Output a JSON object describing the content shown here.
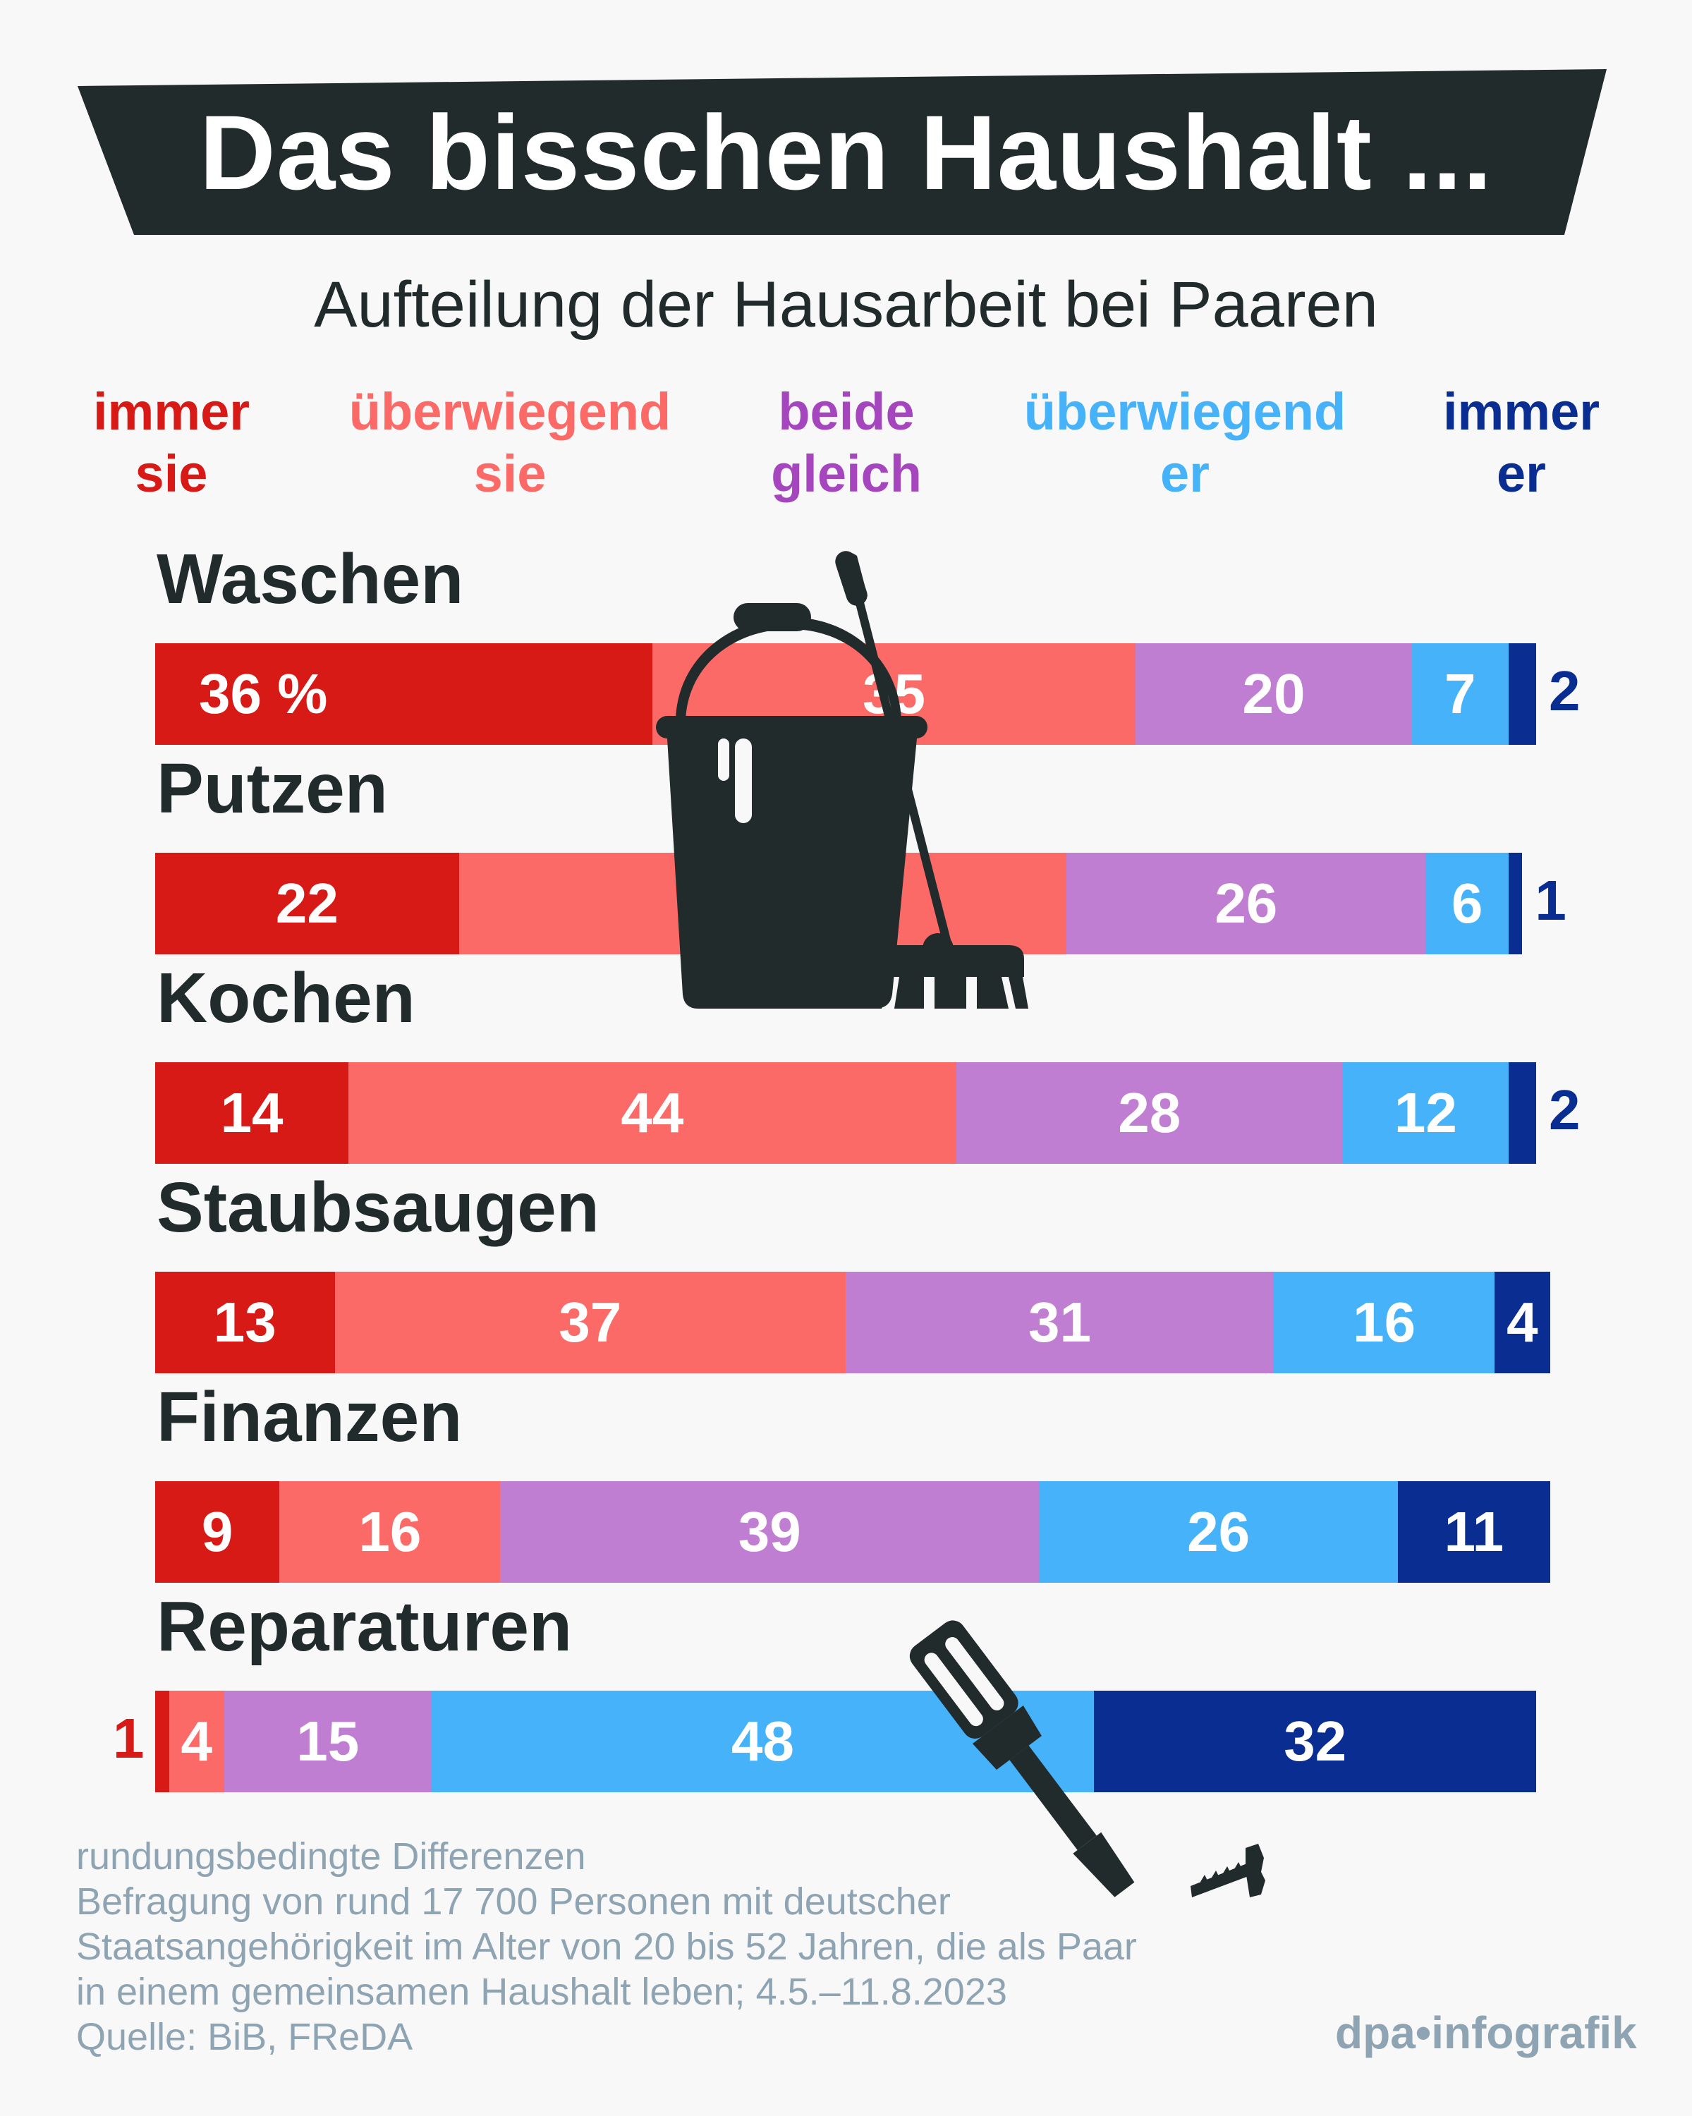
{
  "header": {
    "title": "Das bisschen Haushalt ...",
    "subtitle": "Aufteilung der Hausarbeit bei Paaren"
  },
  "colors": {
    "banner": "#222b2c",
    "immer_sie": "#d81a17",
    "ueberwiegend_sie": "#fc6a68",
    "beide_gleich": "#c07ed2",
    "ueberwiegend_er": "#46b2f9",
    "immer_er": "#0a2d92",
    "text_dark": "#222b2c",
    "footnote": "#8ea4b3"
  },
  "legend": [
    {
      "line1": "immer",
      "line2": "sie",
      "color": "#d81a17"
    },
    {
      "line1": "überwiegend",
      "line2": "sie",
      "color": "#fc6a68"
    },
    {
      "line1": "beide",
      "line2": "gleich",
      "color": "#a546bf"
    },
    {
      "line1": "überwiegend",
      "line2": "er",
      "color": "#46b2f9"
    },
    {
      "line1": "immer",
      "line2": "er",
      "color": "#0a2d92"
    }
  ],
  "chart_data": {
    "type": "bar",
    "orientation": "horizontal",
    "stacked": true,
    "title": "Das bisschen Haushalt ...",
    "subtitle": "Aufteilung der Hausarbeit bei Paaren",
    "unit": "%",
    "categories": [
      "Waschen",
      "Putzen",
      "Kochen",
      "Staubsaugen",
      "Finanzen",
      "Reparaturen"
    ],
    "series": [
      {
        "name": "immer sie",
        "color": "#d81a17",
        "values": [
          36,
          22,
          14,
          13,
          9,
          1
        ]
      },
      {
        "name": "überwiegend sie",
        "color": "#fc6a68",
        "values": [
          35,
          44,
          44,
          37,
          16,
          4
        ]
      },
      {
        "name": "beide gleich",
        "color": "#c07ed2",
        "values": [
          20,
          26,
          28,
          31,
          39,
          15
        ]
      },
      {
        "name": "überwiegend er",
        "color": "#46b2f9",
        "values": [
          7,
          6,
          12,
          16,
          26,
          48
        ]
      },
      {
        "name": "immer er",
        "color": "#0a2d92",
        "values": [
          2,
          1,
          2,
          4,
          11,
          32
        ]
      }
    ],
    "first_label_suffix": " %",
    "legend_position": "top",
    "grid": false
  },
  "footnote": [
    "rundungsbedingte Differenzen",
    "Befragung von rund 17 700 Personen mit deutscher",
    "Staatsangehörigkeit im Alter von 20 bis 52 Jahren, die als Paar",
    "in einem gemeinsamen Haushalt leben; 4.5.–11.8.2023",
    "Quelle: BiB, FReDA"
  ],
  "logo": "dpa•infografik"
}
